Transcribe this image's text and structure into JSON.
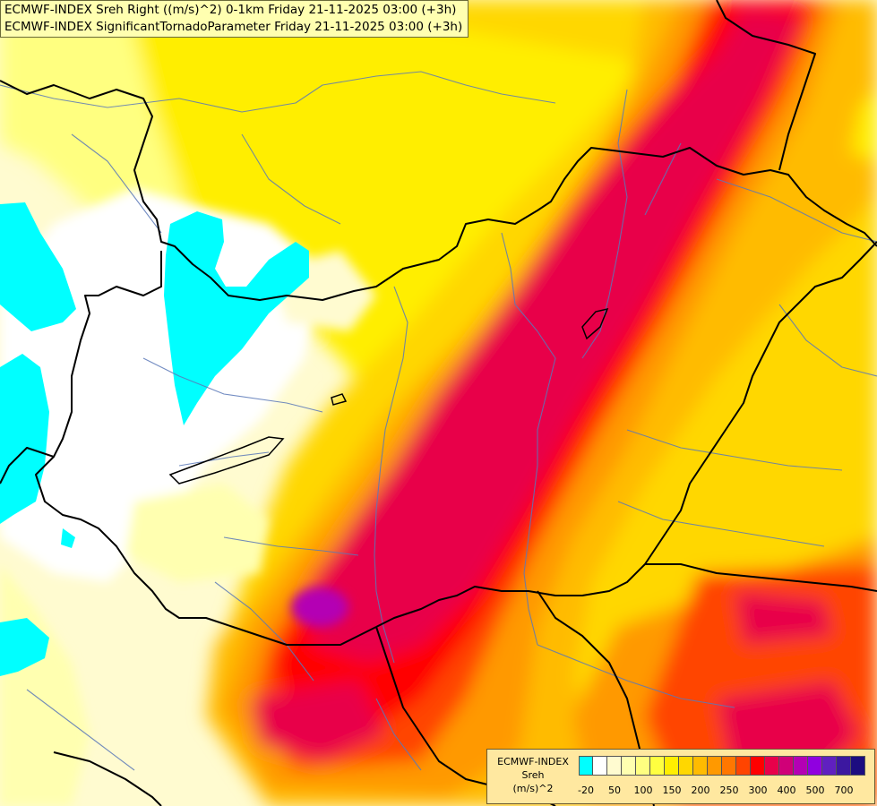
{
  "title": {
    "line1": "ECMWF-INDEX Sreh Right ((m/s)^2) 0-1km Friday 21-11-2025 03:00 (+3h)",
    "line2": "ECMWF-INDEX SignificantTornadoParameter Friday 21-11-2025 03:00 (+3h)"
  },
  "legend": {
    "line1": "ECMWF-INDEX",
    "line2": "Sreh",
    "line3": "(m/s)^2",
    "colors": [
      "#00ffff",
      "#ffffff",
      "#fffbd0",
      "#ffffb0",
      "#ffff80",
      "#ffff40",
      "#ffee00",
      "#ffd700",
      "#ffbb00",
      "#ff9900",
      "#ff7700",
      "#ff4400",
      "#ff0000",
      "#e8004a",
      "#d00078",
      "#b400b4",
      "#9000e0",
      "#6020c0",
      "#3c18a0",
      "#1c0c80"
    ],
    "ticks": [
      {
        "label": "-20",
        "pos": 0.5
      },
      {
        "label": "50",
        "pos": 2.5
      },
      {
        "label": "100",
        "pos": 4.5
      },
      {
        "label": "150",
        "pos": 6.5
      },
      {
        "label": "200",
        "pos": 8.5
      },
      {
        "label": "250",
        "pos": 10.5
      },
      {
        "label": "300",
        "pos": 12.5
      },
      {
        "label": "400",
        "pos": 14.5
      },
      {
        "label": "500",
        "pos": 16.5
      },
      {
        "label": "700",
        "pos": 18.5
      }
    ]
  }
}
